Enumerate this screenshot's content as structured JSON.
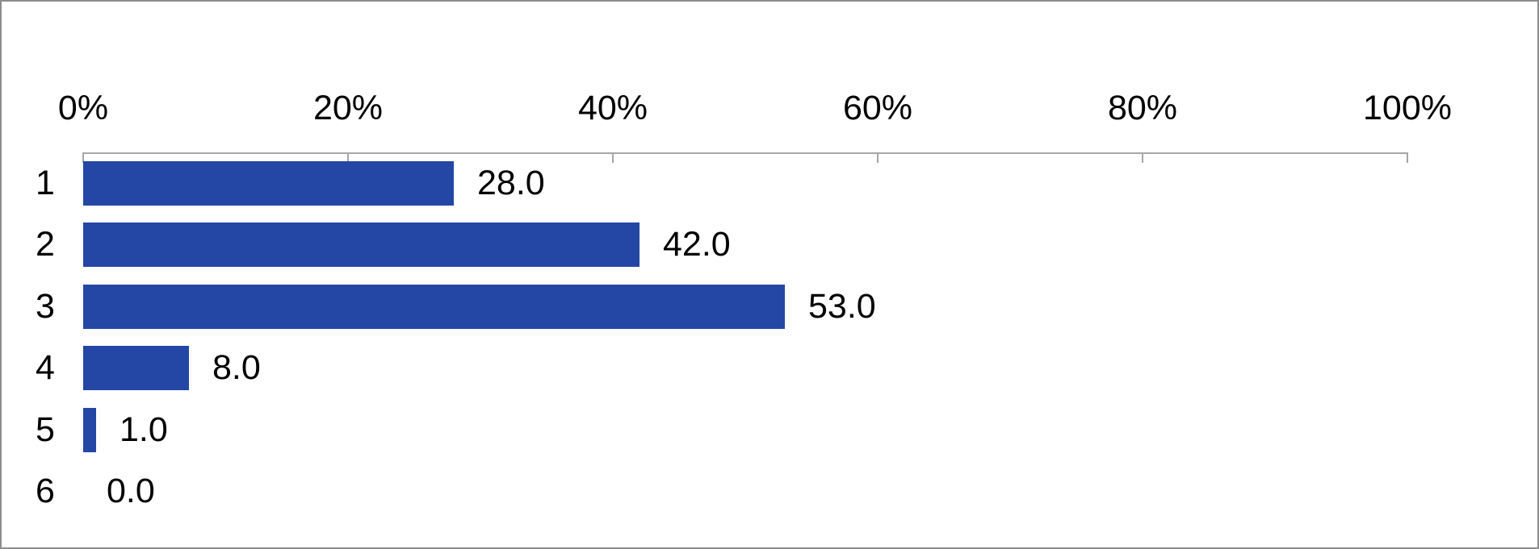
{
  "window": {
    "background_color": "#ffffff",
    "frame_border_color": "#8d8d8d"
  },
  "chart_data": {
    "type": "bar",
    "orientation": "horizontal",
    "title": "",
    "categories": [
      "1",
      "2",
      "3",
      "4",
      "5",
      "6"
    ],
    "values": [
      28,
      42,
      53,
      8,
      1,
      0
    ],
    "data_labels": [
      "28.0",
      "42.0",
      "53.0",
      "8.0",
      "1.0",
      "0.0"
    ],
    "x_axis": {
      "position": "top",
      "min": 0,
      "max": 100,
      "tick_values": [
        0,
        20,
        40,
        60,
        80,
        100
      ],
      "tick_labels": [
        "0%",
        "20%",
        "40%",
        "60%",
        "80%",
        "100%"
      ]
    },
    "bar_color": "#2446a5",
    "axis_color": "#a6a6a6",
    "text_color": "#000000",
    "grid": false,
    "legend": false
  }
}
